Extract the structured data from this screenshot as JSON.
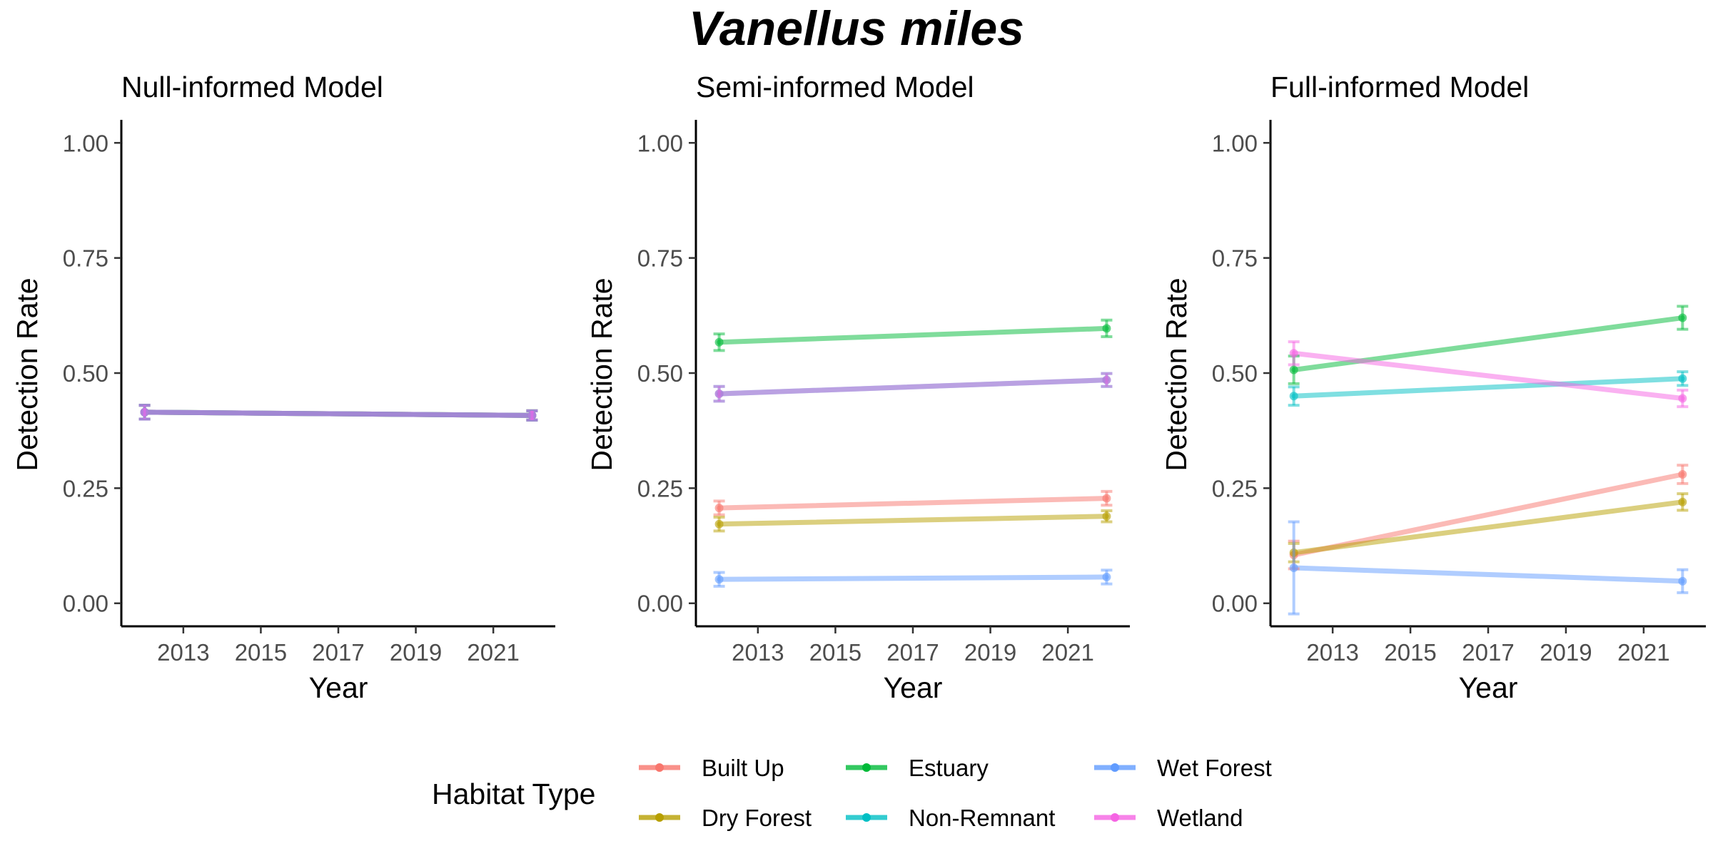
{
  "title": "Vanellus miles",
  "chart_data": [
    {
      "type": "line",
      "title": "Null-informed Model",
      "xlabel": "Year",
      "ylabel": "Detection Rate",
      "xlim": [
        2011.4,
        2022.6
      ],
      "ylim": [
        -0.05,
        1.05
      ],
      "x_ticks": [
        "2013",
        "2015",
        "2017",
        "2019",
        "2021"
      ],
      "y_ticks": [
        "0.00",
        "0.25",
        "0.50",
        "0.75",
        "1.00"
      ],
      "series": [
        {
          "name": "Built Up",
          "x": [
            2012,
            2022
          ],
          "y": [
            0.415,
            0.408
          ],
          "err": [
            0.015,
            0.01
          ]
        },
        {
          "name": "Dry Forest",
          "x": [
            2012,
            2022
          ],
          "y": [
            0.415,
            0.408
          ],
          "err": [
            0.015,
            0.01
          ]
        },
        {
          "name": "Estuary",
          "x": [
            2012,
            2022
          ],
          "y": [
            0.415,
            0.408
          ],
          "err": [
            0.015,
            0.01
          ]
        },
        {
          "name": "Non-Remnant",
          "x": [
            2012,
            2022
          ],
          "y": [
            0.415,
            0.408
          ],
          "err": [
            0.015,
            0.01
          ]
        },
        {
          "name": "Wet Forest",
          "x": [
            2012,
            2022
          ],
          "y": [
            0.415,
            0.408
          ],
          "err": [
            0.015,
            0.01
          ]
        },
        {
          "name": "Wetland",
          "x": [
            2012,
            2022
          ],
          "y": [
            0.415,
            0.408
          ],
          "err": [
            0.015,
            0.01
          ]
        }
      ]
    },
    {
      "type": "line",
      "title": "Semi-informed Model",
      "xlabel": "Year",
      "ylabel": "Detection Rate",
      "xlim": [
        2011.4,
        2022.6
      ],
      "ylim": [
        -0.05,
        1.05
      ],
      "x_ticks": [
        "2013",
        "2015",
        "2017",
        "2019",
        "2021"
      ],
      "y_ticks": [
        "0.00",
        "0.25",
        "0.50",
        "0.75",
        "1.00"
      ],
      "series": [
        {
          "name": "Built Up",
          "x": [
            2012,
            2022
          ],
          "y": [
            0.207,
            0.228
          ],
          "err": [
            0.015,
            0.015
          ]
        },
        {
          "name": "Dry Forest",
          "x": [
            2012,
            2022
          ],
          "y": [
            0.172,
            0.189
          ],
          "err": [
            0.015,
            0.012
          ]
        },
        {
          "name": "Estuary",
          "x": [
            2012,
            2022
          ],
          "y": [
            0.567,
            0.597
          ],
          "err": [
            0.018,
            0.018
          ]
        },
        {
          "name": "Non-Remnant",
          "x": [
            2012,
            2022
          ],
          "y": [
            0.455,
            0.485
          ],
          "err": [
            0.016,
            0.014
          ]
        },
        {
          "name": "Wet Forest",
          "x": [
            2012,
            2022
          ],
          "y": [
            0.052,
            0.057
          ],
          "err": [
            0.015,
            0.015
          ]
        },
        {
          "name": "Wetland",
          "x": [
            2012,
            2022
          ],
          "y": [
            0.455,
            0.485
          ],
          "err": [
            0.016,
            0.014
          ]
        }
      ]
    },
    {
      "type": "line",
      "title": "Full-informed Model",
      "xlabel": "Year",
      "ylabel": "Detection Rate",
      "xlim": [
        2011.4,
        2022.6
      ],
      "ylim": [
        -0.05,
        1.05
      ],
      "x_ticks": [
        "2013",
        "2015",
        "2017",
        "2019",
        "2021"
      ],
      "y_ticks": [
        "0.00",
        "0.25",
        "0.50",
        "0.75",
        "1.00"
      ],
      "series": [
        {
          "name": "Built Up",
          "x": [
            2012,
            2022
          ],
          "y": [
            0.105,
            0.28
          ],
          "err": [
            0.03,
            0.02
          ]
        },
        {
          "name": "Dry Forest",
          "x": [
            2012,
            2022
          ],
          "y": [
            0.11,
            0.22
          ],
          "err": [
            0.02,
            0.018
          ]
        },
        {
          "name": "Estuary",
          "x": [
            2012,
            2022
          ],
          "y": [
            0.507,
            0.62
          ],
          "err": [
            0.03,
            0.025
          ]
        },
        {
          "name": "Non-Remnant",
          "x": [
            2012,
            2022
          ],
          "y": [
            0.45,
            0.488
          ],
          "err": [
            0.02,
            0.015
          ]
        },
        {
          "name": "Wet Forest",
          "x": [
            2012,
            2022
          ],
          "y": [
            0.077,
            0.048
          ],
          "err": [
            0.1,
            0.025
          ]
        },
        {
          "name": "Wetland",
          "x": [
            2012,
            2022
          ],
          "y": [
            0.543,
            0.445
          ],
          "err": [
            0.025,
            0.018
          ]
        }
      ]
    }
  ],
  "legend": {
    "title": "Habitat Type",
    "position": "bottom",
    "items": [
      {
        "name": "Built Up",
        "color": "#F8766D"
      },
      {
        "name": "Dry Forest",
        "color": "#B79F00"
      },
      {
        "name": "Estuary",
        "color": "#00BA38"
      },
      {
        "name": "Non-Remnant",
        "color": "#00BFC4"
      },
      {
        "name": "Wet Forest",
        "color": "#619CFF"
      },
      {
        "name": "Wetland",
        "color": "#F564E3"
      }
    ]
  }
}
